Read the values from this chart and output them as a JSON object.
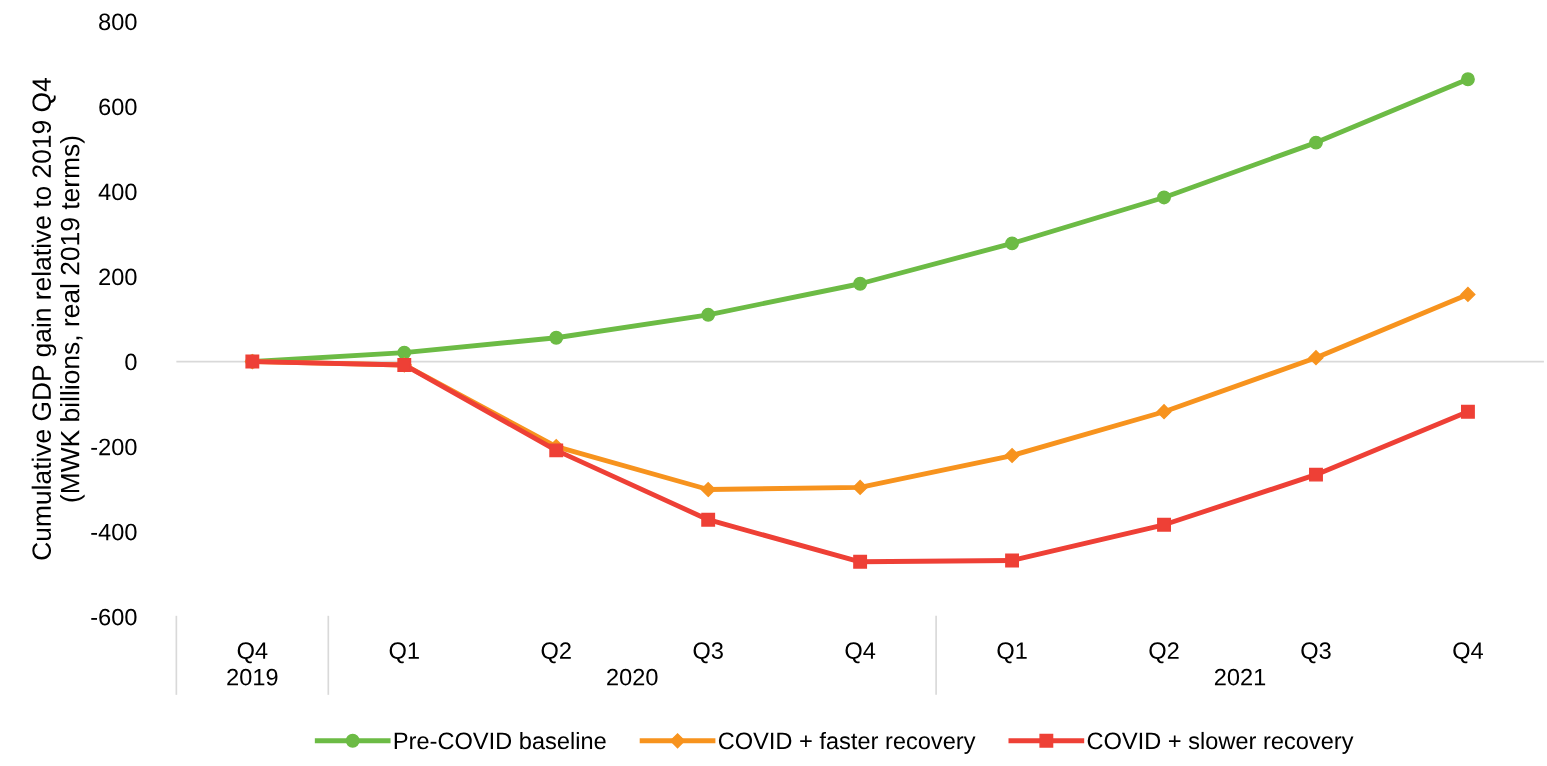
{
  "chart_data": {
    "type": "line",
    "ylabel": "Cumulative GDP gain relative to 2019 Q4\n(MWK billions, real 2019 terms)",
    "categories": [
      "Q4",
      "Q1",
      "Q2",
      "Q3",
      "Q4",
      "Q1",
      "Q2",
      "Q3",
      "Q4"
    ],
    "annotations": [
      "2019",
      "2020",
      "2021"
    ],
    "series": [
      {
        "name": "Pre-COVID baseline",
        "color": "#6cbb45",
        "marker": "circle",
        "values": [
          0,
          21,
          56,
          110,
          183,
          278,
          386,
          515,
          664
        ]
      },
      {
        "name": "COVID + faster recovery",
        "color": "#f7931e",
        "marker": "diamond",
        "values": [
          0,
          -8,
          -200,
          -301,
          -296,
          -221,
          -118,
          9,
          158
        ]
      },
      {
        "name": "COVID + slower recovery",
        "color": "#ee4036",
        "marker": "square",
        "values": [
          0,
          -8,
          -209,
          -372,
          -471,
          -468,
          -384,
          -266,
          -118
        ]
      }
    ],
    "ylim": [
      -600,
      800
    ],
    "yticks": [
      -600,
      -400,
      -200,
      0,
      200,
      400,
      600,
      800
    ],
    "ref_lines": [
      {
        "axis": "y",
        "value": 0,
        "color": "#d9d9d9"
      }
    ],
    "grid": false,
    "legend": "bottom",
    "line_style": "solid"
  }
}
